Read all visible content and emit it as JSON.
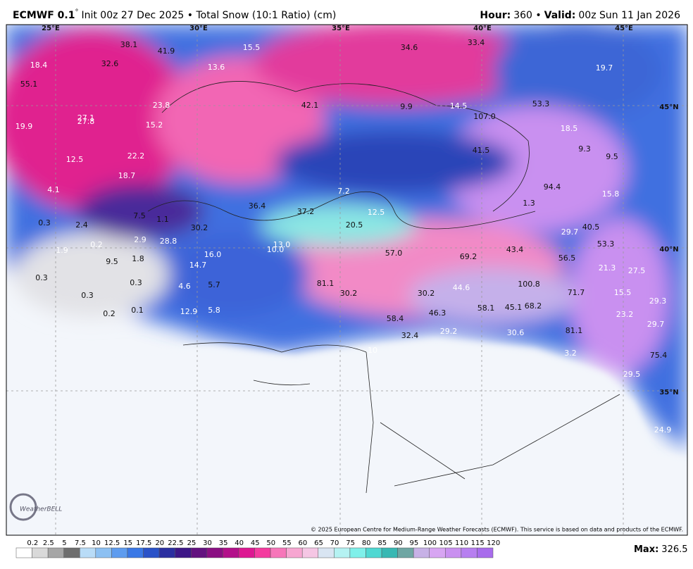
{
  "header": {
    "model": "ECMWF 0.1",
    "degree": "°",
    "subtitle": "Init 00z 27 Dec 2025 • Total Snow (10:1 Ratio) (cm)",
    "hour_label": "Hour:",
    "hour": "360 •",
    "valid_label": "Valid:",
    "valid": "00z Sun 11 Jan 2026"
  },
  "map": {
    "grid_labels": [
      "25°E",
      "30°E",
      "35°E",
      "40°E",
      "45°E",
      "45°N",
      "40°N",
      "35°N"
    ],
    "value_labels": [
      "18.4",
      "38.1",
      "41.9",
      "15.5",
      "34.6",
      "33.4",
      "32.6",
      "13.6",
      "19.7",
      "55.1",
      "42.1",
      "9.9",
      "14.5",
      "53.3",
      "23.8",
      "107.0",
      "27.1",
      "27.8",
      "19.9",
      "15.2",
      "18.5",
      "9.3",
      "9.5",
      "41.5",
      "12.5",
      "22.2",
      "18.7",
      "94.4",
      "15.8",
      "4.1",
      "7.2",
      "36.4",
      "37.2",
      "12.5",
      "1.3",
      "7.5",
      "20.5",
      "29.7",
      "40.5",
      "0.3",
      "2.4",
      "1.1",
      "30.2",
      "28.8",
      "2.9",
      "0.2",
      "13.0",
      "16.0",
      "10.0",
      "57.0",
      "69.2",
      "43.4",
      "53.3",
      "56.5",
      "1.9",
      "1.8",
      "9.5",
      "14.7",
      "21.3",
      "27.5",
      "0.3",
      "0.3",
      "81.1",
      "100.8",
      "4.6",
      "5.7",
      "44.6",
      "30.2",
      "30.2",
      "71.7",
      "15.5",
      "0.3",
      "29.3",
      "0.2",
      "0.1",
      "12.9",
      "5.8",
      "58.1",
      "45.1",
      "68.2",
      "46.3",
      "58.4",
      "23.2",
      "29.7",
      "29.2",
      "30.6",
      "81.1",
      "32.4",
      "10",
      "3.2",
      "75.4",
      "29.5",
      "24.9"
    ],
    "logo": "WeatherBELL",
    "copyright": "© 2025 European Centre for Medium-Range Weather Forecasts (ECMWF). This service is based on data and products of the ECMWF."
  },
  "colorbar": {
    "ticks": [
      0.2,
      2.5,
      5,
      7.5,
      10,
      12.5,
      15,
      17.5,
      20,
      22.5,
      25,
      30,
      35,
      40,
      45,
      50,
      55,
      60,
      65,
      70,
      75,
      80,
      85,
      90,
      95,
      100,
      105,
      110,
      115,
      120
    ],
    "colors": [
      "#ffffff",
      "#d9d9d9",
      "#a6a6a6",
      "#6e6e6e",
      "#b9dcf7",
      "#8cc0f2",
      "#5e9cef",
      "#3a78e6",
      "#2a52c8",
      "#2b2fa0",
      "#3d1787",
      "#63127f",
      "#8a0f82",
      "#b3108a",
      "#dd1892",
      "#f43b9f",
      "#f776b9",
      "#f7a6d1",
      "#f5c6e4",
      "#d9e5f2",
      "#b5f2f2",
      "#7ff0ea",
      "#4fd8d2",
      "#38b8b3",
      "#6fa6a3",
      "#c7b1e6",
      "#d7a5f2",
      "#c990f0",
      "#b77ff0",
      "#a86cec"
    ],
    "max_label": "Max:",
    "max": "326.5"
  }
}
